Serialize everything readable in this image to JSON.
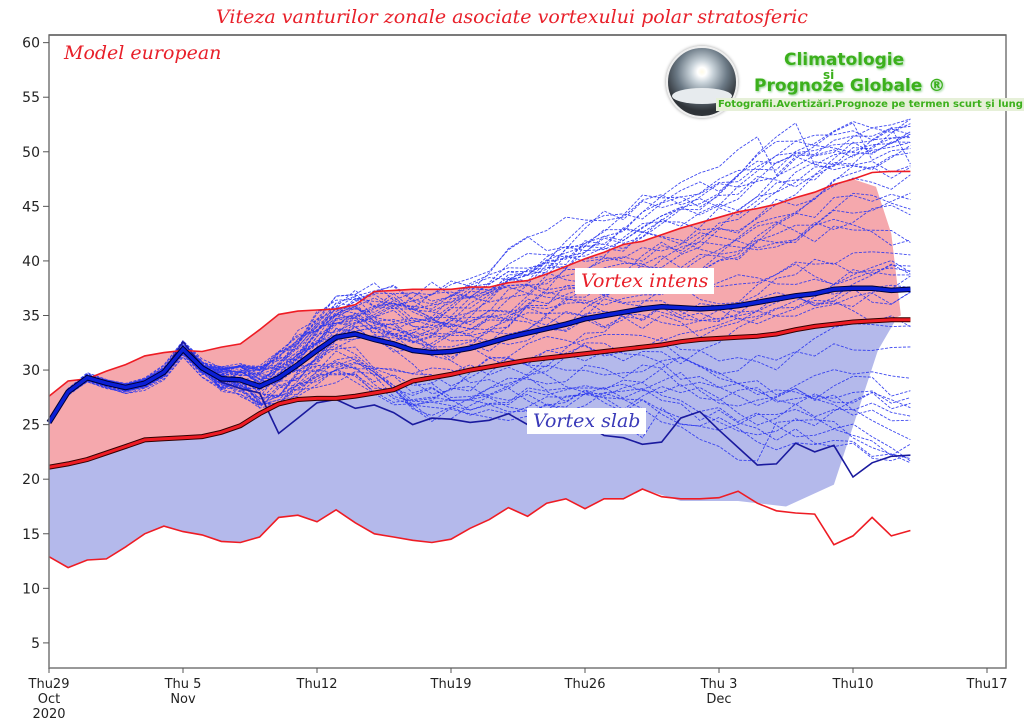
{
  "chart_data": {
    "type": "line",
    "title": "Viteza vanturilor zonale asociate vortexului polar stratosferic",
    "subtitle": "Model european",
    "xlabel": "",
    "ylabel": "",
    "ylim": [
      2.7,
      60.7
    ],
    "xlim_days": [
      0,
      50
    ],
    "grid": false,
    "y_ticks": [
      5,
      10,
      15,
      20,
      25,
      30,
      35,
      40,
      45,
      50,
      55,
      60
    ],
    "x_ticks": [
      {
        "day": 0,
        "lines": [
          "Thu29",
          "Oct",
          "2020"
        ]
      },
      {
        "day": 7,
        "lines": [
          "Thu 5",
          "Nov"
        ]
      },
      {
        "day": 14,
        "lines": [
          "Thu12"
        ]
      },
      {
        "day": 21,
        "lines": [
          "Thu19"
        ]
      },
      {
        "day": 28,
        "lines": [
          "Thu26"
        ]
      },
      {
        "day": 35,
        "lines": [
          "Thu 3",
          "Dec"
        ]
      },
      {
        "day": 42,
        "lines": [
          "Thu10"
        ]
      },
      {
        "day": 49,
        "lines": [
          "Thu17"
        ]
      }
    ],
    "annotations": [
      "Vortex intens",
      "Vortex slab"
    ],
    "series": [
      {
        "name": "climatology-max",
        "color": "#ee1c24",
        "x": [
          0,
          1,
          2,
          3,
          4,
          5,
          6,
          7,
          8,
          9,
          10,
          11,
          12,
          13,
          14,
          15,
          16,
          17,
          18,
          19,
          20,
          21,
          22,
          23,
          24,
          25,
          26,
          27,
          28,
          29,
          30,
          31,
          32,
          33,
          34,
          35,
          36,
          37,
          38,
          39,
          40,
          41,
          42,
          43,
          44,
          45
        ],
        "values": [
          27.6,
          29.0,
          29.2,
          29.9,
          30.5,
          31.3,
          31.6,
          31.8,
          31.7,
          32.1,
          32.4,
          33.7,
          35.1,
          35.4,
          35.5,
          35.6,
          36.0,
          37.2,
          37.3,
          37.4,
          37.4,
          37.4,
          37.6,
          37.6,
          38.0,
          38.2,
          38.8,
          39.5,
          40.2,
          40.8,
          41.5,
          41.8,
          42.4,
          43.0,
          43.5,
          44.0,
          44.5,
          44.8,
          45.2,
          45.8,
          46.3,
          47.0,
          47.5,
          48.1,
          48.2,
          48.2
        ]
      },
      {
        "name": "climatology-median",
        "color": "#cc0000",
        "x": [
          0,
          1,
          2,
          3,
          4,
          5,
          6,
          7,
          8,
          9,
          10,
          11,
          12,
          13,
          14,
          15,
          16,
          17,
          18,
          19,
          20,
          21,
          22,
          23,
          24,
          25,
          26,
          27,
          28,
          29,
          30,
          31,
          32,
          33,
          34,
          35,
          36,
          37,
          38,
          39,
          40,
          41,
          42,
          43,
          44,
          45
        ],
        "values": [
          21.1,
          21.4,
          21.8,
          22.4,
          23.0,
          23.6,
          23.7,
          23.8,
          23.9,
          24.3,
          24.9,
          26.0,
          26.9,
          27.3,
          27.4,
          27.4,
          27.6,
          27.9,
          28.2,
          29.0,
          29.3,
          29.6,
          30.0,
          30.3,
          30.6,
          30.9,
          31.1,
          31.3,
          31.5,
          31.7,
          31.9,
          32.1,
          32.3,
          32.6,
          32.8,
          32.9,
          33.0,
          33.1,
          33.3,
          33.7,
          34.0,
          34.2,
          34.4,
          34.5,
          34.6,
          34.6
        ]
      },
      {
        "name": "climatology-min",
        "color": "#ee1c24",
        "x": [
          0,
          1,
          2,
          3,
          4,
          5,
          6,
          7,
          8,
          9,
          10,
          11,
          12,
          13,
          14,
          15,
          16,
          17,
          18,
          19,
          20,
          21,
          22,
          23,
          24,
          25,
          26,
          27,
          28,
          29,
          30,
          31,
          32,
          33,
          34,
          35,
          36,
          37,
          38,
          39,
          40,
          41,
          42,
          43,
          44,
          45
        ],
        "values": [
          12.9,
          11.9,
          12.6,
          12.7,
          13.8,
          15.0,
          15.7,
          15.2,
          14.9,
          14.3,
          14.2,
          14.7,
          16.5,
          16.7,
          16.1,
          17.2,
          16.0,
          15.0,
          14.7,
          14.4,
          14.2,
          14.5,
          15.5,
          16.3,
          17.4,
          16.6,
          17.8,
          18.2,
          17.3,
          18.2,
          18.2,
          19.1,
          18.4,
          18.2,
          18.2,
          18.3,
          18.9,
          17.8,
          17.1,
          16.9,
          16.8,
          14.0,
          14.8,
          16.5,
          14.8,
          15.3
        ]
      },
      {
        "name": "ensemble-mean",
        "color": "#0a1fd6",
        "x": [
          0,
          1,
          2,
          3,
          4,
          5,
          6,
          7,
          8,
          9,
          10,
          11,
          12,
          13,
          14,
          15,
          16,
          17,
          18,
          19,
          20,
          21,
          22,
          23,
          24,
          25,
          26,
          27,
          28,
          29,
          30,
          31,
          32,
          33,
          34,
          35,
          36,
          37,
          38,
          39,
          40,
          41,
          42,
          43,
          44,
          45
        ],
        "values": [
          25.2,
          28.0,
          29.3,
          28.8,
          28.4,
          28.8,
          29.8,
          31.9,
          30.2,
          29.2,
          29.1,
          28.5,
          29.3,
          30.5,
          31.8,
          33.0,
          33.3,
          32.8,
          32.4,
          31.8,
          31.6,
          31.7,
          32.0,
          32.5,
          33.0,
          33.4,
          33.8,
          34.2,
          34.7,
          35.0,
          35.3,
          35.6,
          35.8,
          35.7,
          35.6,
          35.7,
          35.9,
          36.2,
          36.5,
          36.8,
          37.0,
          37.4,
          37.5,
          37.5,
          37.3,
          37.4
        ]
      },
      {
        "name": "control-run",
        "color": "#1a1a9e",
        "x": [
          0,
          1,
          2,
          3,
          4,
          5,
          6,
          7,
          8,
          9,
          10,
          11,
          12,
          13,
          14,
          15,
          16,
          17,
          18,
          19,
          20,
          21,
          22,
          23,
          24,
          25,
          26,
          27,
          28,
          29,
          30,
          31,
          32,
          33,
          34,
          35,
          36,
          37,
          38,
          39,
          40,
          41,
          42,
          43,
          44,
          45
        ],
        "values": [
          25.2,
          28.2,
          29.4,
          28.6,
          28.3,
          28.9,
          29.9,
          32.6,
          30.4,
          28.9,
          28.3,
          27.9,
          24.2,
          25.6,
          27.0,
          27.3,
          26.5,
          26.8,
          26.1,
          25.0,
          25.6,
          25.5,
          25.2,
          25.4,
          26.0,
          25.0,
          24.3,
          24.6,
          25.1,
          24.0,
          23.8,
          23.2,
          23.4,
          25.6,
          26.2,
          24.5,
          22.9,
          21.3,
          21.4,
          23.3,
          22.5,
          23.1,
          20.2,
          21.5,
          22.1,
          22.2
        ]
      }
    ],
    "bands": [
      {
        "name": "vortex-intens-band",
        "color": "#f5a8ad",
        "between": [
          "climatology-median",
          "climatology-max-to-day-43"
        ],
        "label": "Vortex intens"
      },
      {
        "name": "vortex-slab-band",
        "color": "#b4b9eb",
        "between": [
          "climatology-min",
          "climatology-median"
        ],
        "label": "Vortex slab"
      }
    ],
    "ensemble_members_count": 50,
    "ensemble_member_color": "#2a36f0"
  }
}
